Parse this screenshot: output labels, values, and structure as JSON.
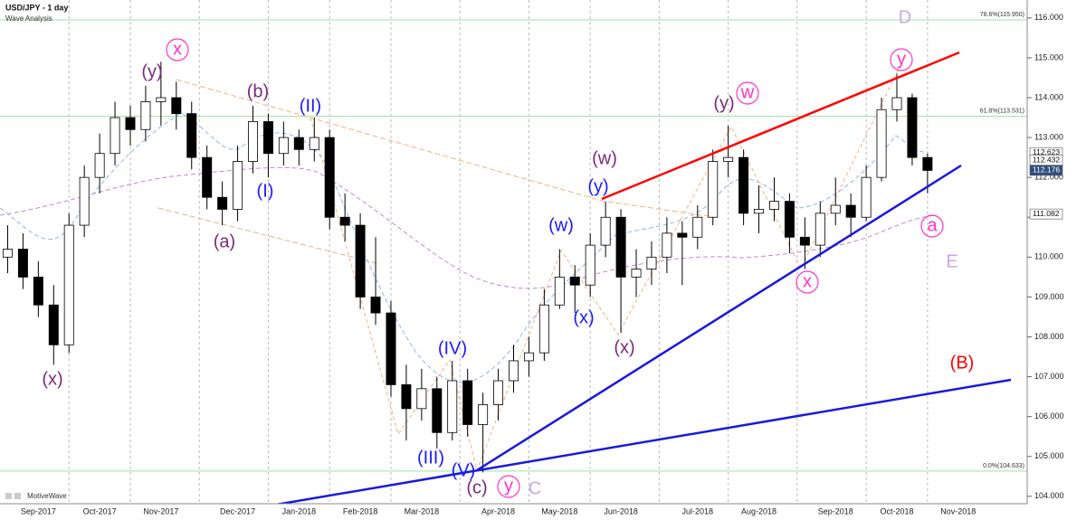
{
  "chart_data": {
    "type": "candlestick",
    "title": "USD/JPY - 1 day",
    "subtitle": "Wave Analysis",
    "brand": "MotiveWave",
    "categories": [
      null,
      null,
      "Sep-2017",
      null,
      null,
      null,
      "Oct-2017",
      null,
      null,
      null,
      "Nov-2017",
      null,
      null,
      null,
      null,
      "Dec-2017",
      null,
      null,
      null,
      "Jan-2018",
      null,
      null,
      null,
      "Feb-2018",
      null,
      null,
      null,
      "Mar-2018",
      null,
      null,
      null,
      null,
      "Apr-2018",
      null,
      null,
      null,
      "May-2018",
      null,
      null,
      null,
      "Jun-2018",
      null,
      null,
      null,
      null,
      "Jul-2018",
      null,
      null,
      null,
      "Aug-2018",
      null,
      null,
      null,
      null,
      "Sep-2018",
      null,
      null,
      null,
      "Oct-2018",
      null,
      null,
      null,
      "Nov-2018",
      null,
      null,
      null,
      null
    ],
    "open": [
      110.0,
      110.2,
      109.5,
      108.8,
      107.8,
      110.8,
      112.0,
      112.6,
      113.5,
      113.2,
      113.9,
      114.0,
      113.6,
      112.5,
      111.5,
      111.2,
      112.4,
      113.4,
      112.6,
      113.0,
      112.7,
      113.0,
      111.0,
      110.8,
      109.0,
      108.6,
      106.8,
      106.2,
      106.7,
      105.6,
      106.9,
      105.8,
      106.3,
      106.9,
      107.4,
      107.6,
      108.8,
      109.5,
      109.3,
      110.3,
      111.0,
      109.5,
      109.7,
      110.0,
      110.6,
      110.5,
      111.0,
      112.4,
      112.5,
      111.1,
      111.2,
      111.4,
      110.5,
      110.3,
      111.1,
      111.3,
      111.0,
      112.0,
      113.7,
      114.0,
      112.5,
      null,
      null,
      null,
      null,
      null,
      null
    ],
    "high": [
      110.8,
      110.6,
      109.9,
      109.3,
      111.1,
      112.3,
      113.1,
      113.9,
      113.8,
      114.3,
      114.9,
      114.4,
      113.9,
      112.8,
      111.9,
      112.8,
      113.8,
      113.6,
      113.4,
      113.2,
      113.5,
      113.2,
      111.6,
      111.1,
      110.5,
      108.9,
      107.3,
      107.2,
      107.0,
      107.4,
      107.2,
      106.6,
      107.2,
      107.8,
      108.0,
      109.2,
      110.2,
      109.8,
      110.6,
      111.4,
      111.2,
      110.2,
      110.4,
      111.0,
      110.9,
      111.3,
      112.7,
      113.3,
      112.7,
      111.8,
      112.0,
      111.6,
      111.0,
      111.4,
      112.0,
      111.6,
      112.3,
      114.0,
      114.6,
      114.1,
      112.6,
      null,
      null,
      null,
      null,
      null,
      null
    ],
    "low": [
      109.6,
      109.2,
      108.5,
      107.3,
      107.6,
      110.5,
      111.6,
      112.3,
      112.8,
      112.9,
      113.3,
      113.2,
      112.2,
      111.2,
      110.8,
      110.9,
      112.1,
      112.0,
      112.3,
      112.3,
      112.4,
      110.7,
      110.4,
      108.7,
      108.3,
      106.5,
      105.4,
      105.9,
      105.2,
      105.4,
      105.5,
      104.6,
      105.9,
      106.6,
      107.0,
      107.4,
      108.7,
      108.6,
      109.0,
      110.0,
      108.1,
      109.0,
      109.3,
      109.6,
      109.3,
      110.2,
      110.8,
      112.0,
      110.8,
      110.6,
      110.9,
      110.1,
      109.7,
      110.0,
      110.8,
      110.5,
      110.9,
      111.9,
      113.4,
      112.3,
      111.6,
      null,
      null,
      null,
      null,
      null,
      null
    ],
    "close": [
      110.2,
      109.5,
      108.8,
      107.8,
      110.8,
      112.0,
      112.6,
      113.5,
      113.2,
      113.9,
      114.0,
      113.6,
      112.5,
      111.5,
      111.2,
      112.4,
      113.4,
      112.6,
      113.0,
      112.7,
      113.0,
      111.0,
      110.8,
      109.0,
      108.6,
      106.8,
      106.2,
      106.7,
      105.6,
      106.9,
      105.8,
      106.3,
      106.9,
      107.4,
      107.6,
      108.8,
      109.5,
      109.3,
      110.3,
      111.0,
      109.5,
      109.7,
      110.0,
      110.6,
      110.5,
      111.0,
      112.4,
      112.5,
      111.1,
      111.2,
      111.4,
      110.5,
      110.3,
      111.1,
      111.3,
      111.0,
      112.0,
      113.7,
      114.0,
      112.5,
      112.176,
      null,
      null,
      null,
      null,
      null,
      null
    ],
    "up_color": "#ffffff",
    "down_color": "#000000",
    "ylim": [
      103.86,
      116.45
    ],
    "yticks": [
      {
        "value": 104,
        "label": "104.000"
      },
      {
        "value": 105,
        "label": "105.000"
      },
      {
        "value": 106,
        "label": "106.000"
      },
      {
        "value": 107,
        "label": "107.000"
      },
      {
        "value": 108,
        "label": "108.000"
      },
      {
        "value": 109,
        "label": "109.000"
      },
      {
        "value": 110,
        "label": "110.000"
      },
      {
        "value": 111,
        "label": "111.000"
      },
      {
        "value": 112,
        "label": "112.000"
      },
      {
        "value": 113,
        "label": "113.000"
      },
      {
        "value": 114,
        "label": "114.000"
      },
      {
        "value": 115,
        "label": "115.000"
      },
      {
        "value": 116,
        "label": "116.000"
      }
    ],
    "fib_levels": [
      {
        "value": 115.95,
        "label": "78.6%(115.950)"
      },
      {
        "value": 113.531,
        "label": "61.8%(113.531)"
      },
      {
        "value": 104.633,
        "label": "0.0%(104.633)"
      }
    ],
    "fib_color": "#9be39b",
    "price_tags": [
      112.623,
      112.432,
      112.176,
      111.082
    ],
    "annotations": [
      {
        "text": "(x)",
        "color": "#7b2a7b"
      },
      {
        "text": "(y)",
        "color": "#7b2a7b"
      },
      {
        "text": "x",
        "color": "#ff33cc"
      },
      {
        "text": "(a)",
        "color": "#7b2a7b"
      },
      {
        "text": "(b)",
        "color": "#7b2a7b"
      },
      {
        "text": "(I)",
        "color": "#1a1aff"
      },
      {
        "text": "(II)",
        "color": "#1a1aff"
      },
      {
        "text": "(III)",
        "color": "#1a1aff"
      },
      {
        "text": "(IV)",
        "color": "#1a1aff"
      },
      {
        "text": "(V)",
        "color": "#1a1aff"
      },
      {
        "text": "(c)",
        "color": "#7b2a7b"
      },
      {
        "text": "y",
        "color": "#ff33cc"
      },
      {
        "text": "C",
        "color": "#c9a7e8"
      },
      {
        "text": "(w)",
        "color": "#1a1aff"
      },
      {
        "text": "(x)",
        "color": "#1a1aff"
      },
      {
        "text": "(y)",
        "color": "#1a1aff"
      },
      {
        "text": "(w)",
        "color": "#7b2a7b"
      },
      {
        "text": "(x)",
        "color": "#7b2a7b"
      },
      {
        "text": "(y)",
        "color": "#7b2a7b"
      },
      {
        "text": "w",
        "color": "#ff33cc"
      },
      {
        "text": "x",
        "color": "#ff33cc"
      },
      {
        "text": "y",
        "color": "#ff33cc"
      },
      {
        "text": "D",
        "color": "#c9a7e8"
      },
      {
        "text": "a",
        "color": "#ff33cc"
      },
      {
        "text": "E",
        "color": "#c9a7e8"
      },
      {
        "text": "(B)",
        "color": "#ff0000"
      }
    ]
  }
}
